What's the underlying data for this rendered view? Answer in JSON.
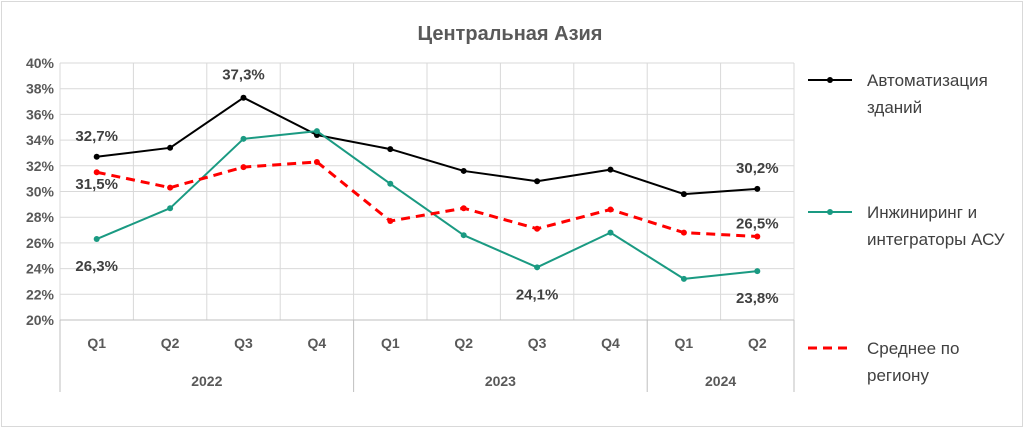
{
  "chart_data": {
    "type": "line",
    "title": "Центральная Азия",
    "xlabel": "",
    "ylabel": "",
    "ylim": [
      20,
      40
    ],
    "y_ticks": [
      "20%",
      "22%",
      "24%",
      "26%",
      "28%",
      "30%",
      "32%",
      "34%",
      "36%",
      "38%",
      "40%"
    ],
    "categories": [
      "Q1",
      "Q2",
      "Q3",
      "Q4",
      "Q1",
      "Q2",
      "Q3",
      "Q4",
      "Q1",
      "Q2"
    ],
    "groups": [
      {
        "label": "2022",
        "count": 4
      },
      {
        "label": "2023",
        "count": 4
      },
      {
        "label": "2024",
        "count": 2
      }
    ],
    "grid": true,
    "legend_position": "right",
    "series": [
      {
        "name": "Автоматизация зданий",
        "legend_lines": [
          "Автоматизация",
          "зданий"
        ],
        "color": "#000000",
        "style": "solid",
        "values": [
          32.7,
          33.4,
          37.3,
          34.4,
          33.3,
          31.6,
          30.8,
          31.7,
          29.8,
          30.2
        ]
      },
      {
        "name": "Инжиниринг и интеграторы АСУ",
        "legend_lines": [
          "Инжиниринг и",
          "интеграторы АСУ"
        ],
        "color": "#1a9a82",
        "style": "solid",
        "values": [
          26.3,
          28.7,
          34.1,
          34.7,
          30.6,
          26.6,
          24.1,
          26.8,
          23.2,
          23.8
        ]
      },
      {
        "name": "Среднее по региону",
        "legend_lines": [
          "Среднее по",
          "региону"
        ],
        "color": "#ff0000",
        "style": "dashed",
        "values": [
          31.5,
          30.3,
          31.9,
          32.3,
          27.7,
          28.7,
          27.1,
          28.6,
          26.8,
          26.5
        ]
      }
    ],
    "data_labels": [
      {
        "text": "32,7%",
        "series": 0,
        "index": 0
      },
      {
        "text": "37,3%",
        "series": 0,
        "index": 2
      },
      {
        "text": "30,2%",
        "series": 0,
        "index": 9
      },
      {
        "text": "26,3%",
        "series": 1,
        "index": 0
      },
      {
        "text": "24,1%",
        "series": 1,
        "index": 6
      },
      {
        "text": "23,8%",
        "series": 1,
        "index": 9
      },
      {
        "text": "31,5%",
        "series": 2,
        "index": 0
      },
      {
        "text": "26,5%",
        "series": 2,
        "index": 9
      }
    ]
  }
}
